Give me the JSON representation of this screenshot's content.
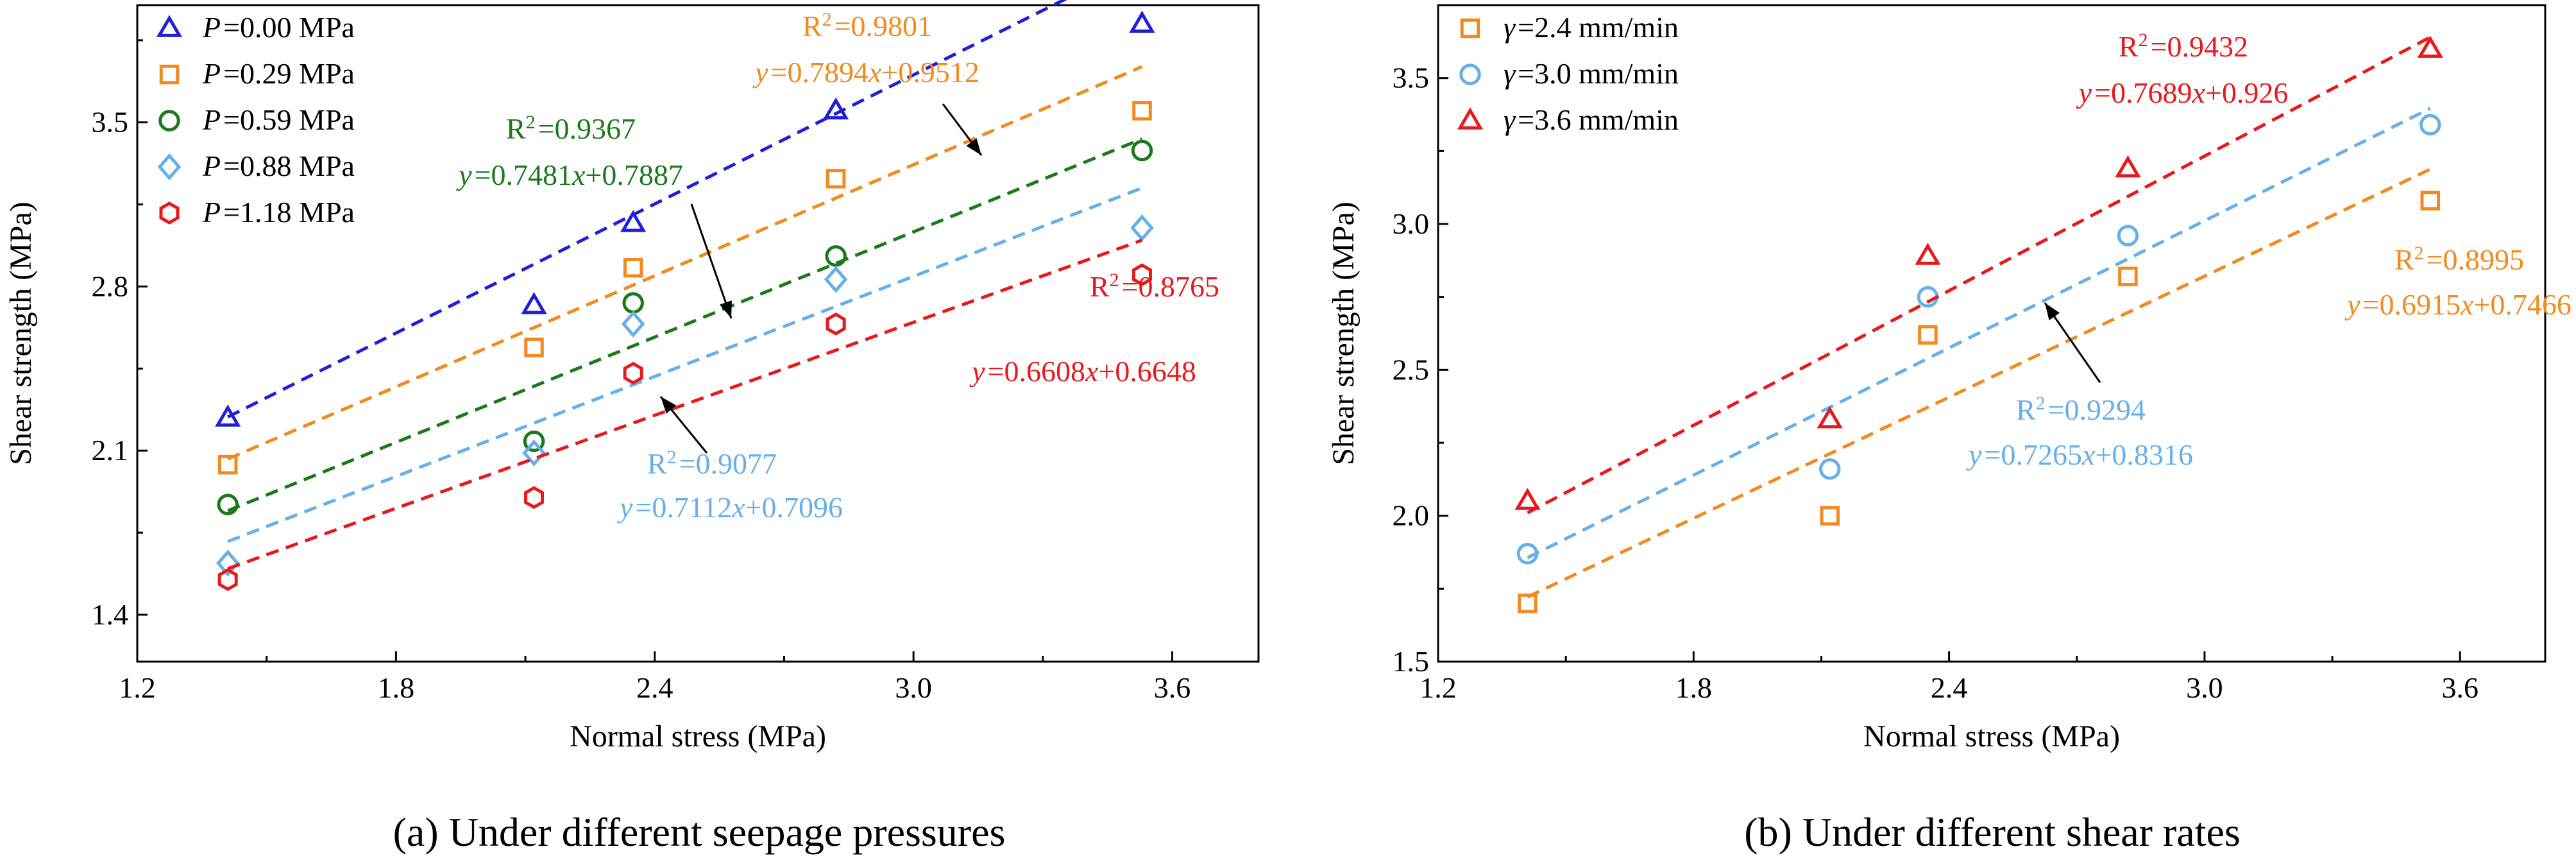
{
  "chart_data": [
    {
      "type": "scatter",
      "caption": "(a) Under different seepage pressures",
      "xlabel": "Normal stress (MPa)",
      "ylabel": "Shear strength (MPa)",
      "xlim": [
        1.2,
        3.8
      ],
      "ylim": [
        1.2,
        4.0
      ],
      "xticks": [
        "1.2",
        "1.8",
        "2.4",
        "3.0",
        "3.6"
      ],
      "yticks": [
        "1.4",
        "2.1",
        "2.8",
        "3.5"
      ],
      "grid": false,
      "legend_position": "top-left",
      "x": [
        1.41,
        2.12,
        2.35,
        2.82,
        3.53
      ],
      "series": [
        {
          "name_prefix": "P",
          "name_value": "=0.00 MPa",
          "marker": "triangle",
          "color": "#1f1fd6",
          "values": [
            2.24,
            2.72,
            3.07,
            3.55,
            3.92
          ],
          "fit": {
            "slope": 0.9175,
            "intercept": 0.95
          }
        },
        {
          "name_prefix": "P",
          "name_value": "=0.29 MPa",
          "marker": "square",
          "color": "#f28a1e",
          "values": [
            2.04,
            2.54,
            2.88,
            3.26,
            3.55
          ],
          "fit": {
            "slope": 0.7894,
            "intercept": 0.9512
          }
        },
        {
          "name_prefix": "P",
          "name_value": "=0.59 MPa",
          "marker": "circle",
          "color": "#1a7a1a",
          "values": [
            1.87,
            2.14,
            2.73,
            2.93,
            3.38
          ],
          "fit": {
            "slope": 0.7481,
            "intercept": 0.7887
          }
        },
        {
          "name_prefix": "P",
          "name_value": "=0.88 MPa",
          "marker": "diamond",
          "color": "#66b0ea",
          "values": [
            1.62,
            2.09,
            2.64,
            2.83,
            3.05
          ],
          "fit": {
            "slope": 0.7112,
            "intercept": 0.7096
          }
        },
        {
          "name_prefix": "P",
          "name_value": "=1.18 MPa",
          "marker": "hexagon",
          "color": "#e8191c",
          "values": [
            1.55,
            1.9,
            2.43,
            2.64,
            2.85
          ],
          "fit": {
            "slope": 0.6608,
            "intercept": 0.6648
          }
        }
      ],
      "annotations": [
        {
          "r2_label": "R",
          "r2_value": "=0.9801",
          "eq_value": "=0.7894",
          "eq_tail": "+0.9512",
          "color": "#f28a1e"
        },
        {
          "r2_label": "R",
          "r2_value": "=0.9367",
          "eq_value": "=0.7481",
          "eq_tail": "+0.7887",
          "color": "#1a7a1a"
        },
        {
          "r2_label": "R",
          "r2_value": "=0.8765",
          "eq_value": "=0.6608",
          "eq_tail": "+0.6648",
          "color": "#e8191c"
        },
        {
          "r2_label": "R",
          "r2_value": "=0.9077",
          "eq_value": "=0.7112",
          "eq_tail": "+0.7096",
          "color": "#66b0ea"
        }
      ]
    },
    {
      "type": "scatter",
      "caption": "(b) Under different shear rates",
      "xlabel": "Normal stress (MPa)",
      "ylabel": "Shear strength (MPa)",
      "xlim": [
        1.2,
        3.8
      ],
      "ylim": [
        1.5,
        3.75
      ],
      "xticks": [
        "1.2",
        "1.8",
        "2.4",
        "3.0",
        "3.6"
      ],
      "yticks": [
        "1.5",
        "2.0",
        "2.5",
        "3.0",
        "3.5"
      ],
      "grid": false,
      "legend_position": "top-left",
      "x": [
        1.41,
        2.12,
        2.35,
        2.82,
        3.53
      ],
      "series": [
        {
          "name_prefix": "γ",
          "name_value": "=2.4 mm/min",
          "marker": "square",
          "color": "#f28a1e",
          "values": [
            1.7,
            2.0,
            2.62,
            2.82,
            3.08
          ],
          "fit": {
            "slope": 0.6915,
            "intercept": 0.7466
          }
        },
        {
          "name_prefix": "γ",
          "name_value": "=3.0 mm/min",
          "marker": "circle",
          "color": "#66b0ea",
          "values": [
            1.87,
            2.16,
            2.75,
            2.96,
            3.34
          ],
          "fit": {
            "slope": 0.7265,
            "intercept": 0.8316
          }
        },
        {
          "name_prefix": "γ",
          "name_value": "=3.6 mm/min",
          "marker": "triangle",
          "color": "#e8191c",
          "values": [
            2.05,
            2.33,
            2.89,
            3.19,
            3.6
          ],
          "fit": {
            "slope": 0.7689,
            "intercept": 0.926
          }
        }
      ],
      "annotations": [
        {
          "r2_label": "R",
          "r2_value": "=0.9432",
          "eq_value": "=0.7689",
          "eq_tail": "+0.926",
          "color": "#e8191c"
        },
        {
          "r2_label": "R",
          "r2_value": "=0.8995",
          "eq_value": "=0.6915",
          "eq_tail": "+0.7466",
          "color": "#f28a1e"
        },
        {
          "r2_label": "R",
          "r2_value": "=0.9294",
          "eq_value": "=0.7265",
          "eq_tail": "+0.8316",
          "color": "#66b0ea"
        }
      ]
    }
  ]
}
